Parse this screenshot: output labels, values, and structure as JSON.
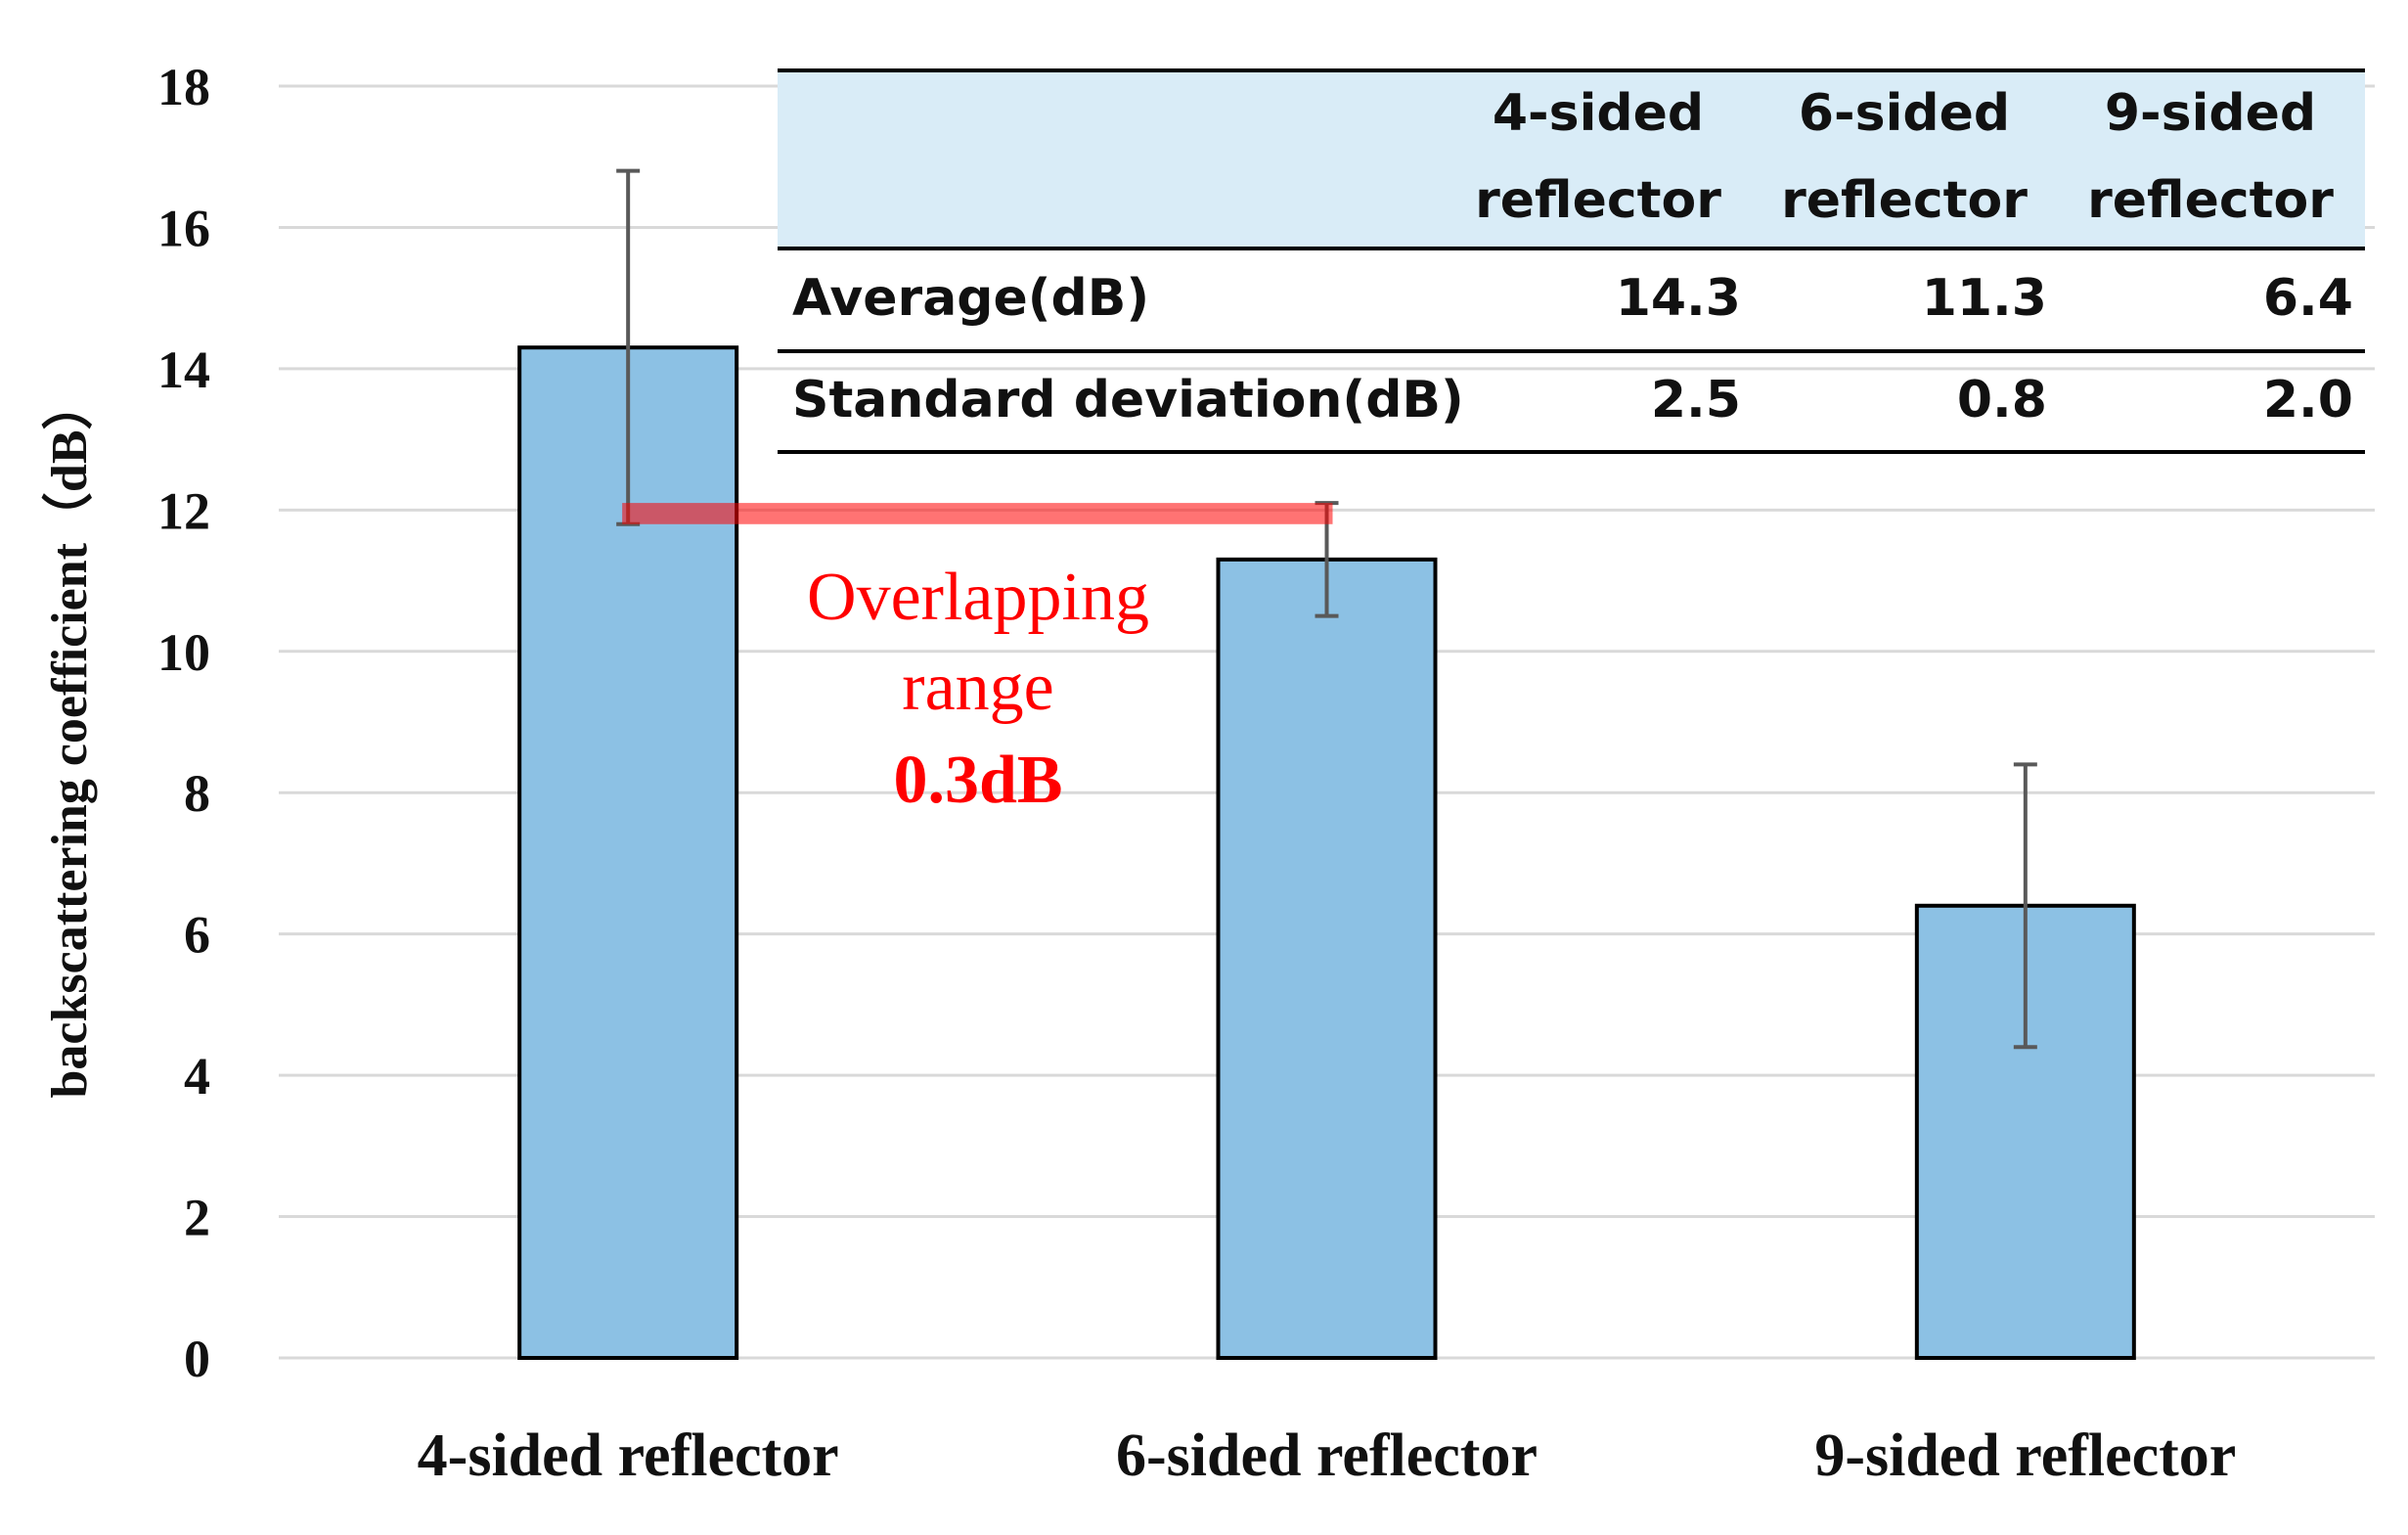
{
  "chart_data": {
    "type": "bar",
    "categories": [
      "4-sided reflector",
      "6-sided reflector",
      "9-sided reflector"
    ],
    "values": [
      14.3,
      11.3,
      6.4
    ],
    "error": [
      2.5,
      0.8,
      2.0
    ],
    "ylabel": "backscattering coefficient（dB）",
    "ylim": [
      0,
      18
    ],
    "yticks": [
      0,
      2,
      4,
      6,
      8,
      10,
      12,
      14,
      16,
      18
    ],
    "grid": true,
    "bar_color": "#8cc1e4",
    "overlap": {
      "from": 11.8,
      "to": 12.1,
      "color": "#ff0000",
      "text_line1": "Overlapping",
      "text_line2": "range",
      "value_text": "0.3dB"
    },
    "table": {
      "header_bg": "#d9ecf7",
      "headers": [
        [
          "4-sided",
          "reflector"
        ],
        [
          "6-sided",
          "reflector"
        ],
        [
          "9-sided",
          "reflector"
        ]
      ],
      "rows": [
        {
          "label": "Average(dB)",
          "cells": [
            "14.3",
            "11.3",
            "6.4"
          ]
        },
        {
          "label": "Standard deviation(dB)",
          "cells": [
            "2.5",
            "0.8",
            "2.0"
          ]
        }
      ]
    }
  }
}
